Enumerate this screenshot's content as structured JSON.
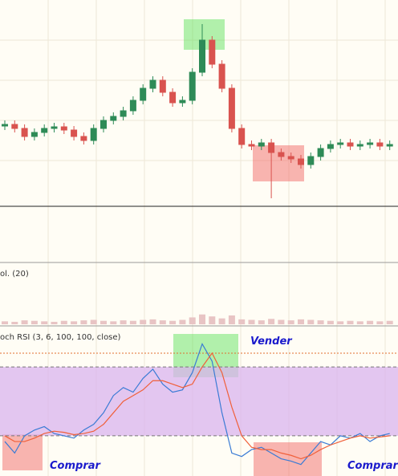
{
  "chart_data": [
    {
      "type": "candlestick",
      "up_color": "#2e8b57",
      "down_color": "#d9534f",
      "ylim": [
        0,
        257
      ],
      "open": [
        100,
        102,
        97,
        87,
        92,
        97,
        99,
        95,
        87,
        82,
        97,
        107,
        112,
        119,
        132,
        147,
        157,
        142,
        129,
        132,
        167,
        207,
        177,
        147,
        97,
        77,
        75,
        79,
        67,
        62,
        59,
        52,
        62,
        72,
        77,
        79,
        75,
        77,
        79,
        75
      ],
      "high": [
        107,
        107,
        102,
        97,
        102,
        104,
        104,
        100,
        92,
        102,
        112,
        117,
        124,
        137,
        152,
        162,
        162,
        147,
        137,
        172,
        227,
        212,
        182,
        152,
        102,
        82,
        84,
        84,
        72,
        67,
        64,
        67,
        77,
        82,
        84,
        84,
        82,
        84,
        84,
        82
      ],
      "low": [
        95,
        92,
        82,
        82,
        87,
        92,
        90,
        82,
        77,
        77,
        92,
        102,
        107,
        114,
        127,
        142,
        137,
        124,
        124,
        127,
        162,
        172,
        142,
        92,
        72,
        70,
        70,
        10,
        57,
        54,
        47,
        47,
        57,
        67,
        72,
        70,
        70,
        72,
        70,
        70
      ],
      "close": [
        102,
        97,
        87,
        92,
        97,
        99,
        95,
        87,
        82,
        97,
        107,
        112,
        119,
        132,
        147,
        157,
        142,
        129,
        132,
        167,
        207,
        177,
        147,
        97,
        77,
        75,
        79,
        67,
        62,
        59,
        52,
        62,
        72,
        77,
        79,
        75,
        77,
        79,
        75,
        77
      ]
    },
    {
      "type": "bar",
      "title": "ol. (20)",
      "color": "#e8c4c4",
      "ylim": [
        0,
        80
      ],
      "values": [
        6,
        5,
        8,
        7,
        6,
        5,
        7,
        6,
        8,
        9,
        7,
        6,
        8,
        7,
        9,
        10,
        8,
        7,
        9,
        14,
        20,
        16,
        12,
        18,
        10,
        9,
        8,
        11,
        9,
        8,
        10,
        9,
        8,
        7,
        6,
        7,
        6,
        7,
        6,
        7
      ]
    },
    {
      "type": "line",
      "title": "och RSI (3, 6, 100, 100, close)",
      "ylim": [
        -15,
        115
      ],
      "band": [
        20,
        80
      ],
      "band_color": "#d9b3ee",
      "series": [
        {
          "color": "#3a7bd5",
          "values": [
            15,
            5,
            20,
            25,
            28,
            22,
            20,
            18,
            25,
            30,
            40,
            55,
            62,
            58,
            70,
            78,
            65,
            58,
            60,
            75,
            100,
            85,
            40,
            5,
            2,
            8,
            10,
            5,
            0,
            -2,
            -5,
            5,
            15,
            12,
            20,
            18,
            22,
            15,
            20,
            22
          ]
        },
        {
          "color": "#f0603a",
          "values": [
            20,
            15,
            15,
            18,
            22,
            24,
            23,
            21,
            22,
            24,
            30,
            40,
            50,
            55,
            60,
            68,
            68,
            65,
            62,
            65,
            80,
            92,
            75,
            45,
            20,
            10,
            8,
            8,
            5,
            3,
            0,
            3,
            8,
            12,
            15,
            18,
            20,
            18,
            19,
            20
          ]
        }
      ],
      "annotations": [
        "Vender",
        "Comprar",
        "Comprar"
      ]
    }
  ]
}
